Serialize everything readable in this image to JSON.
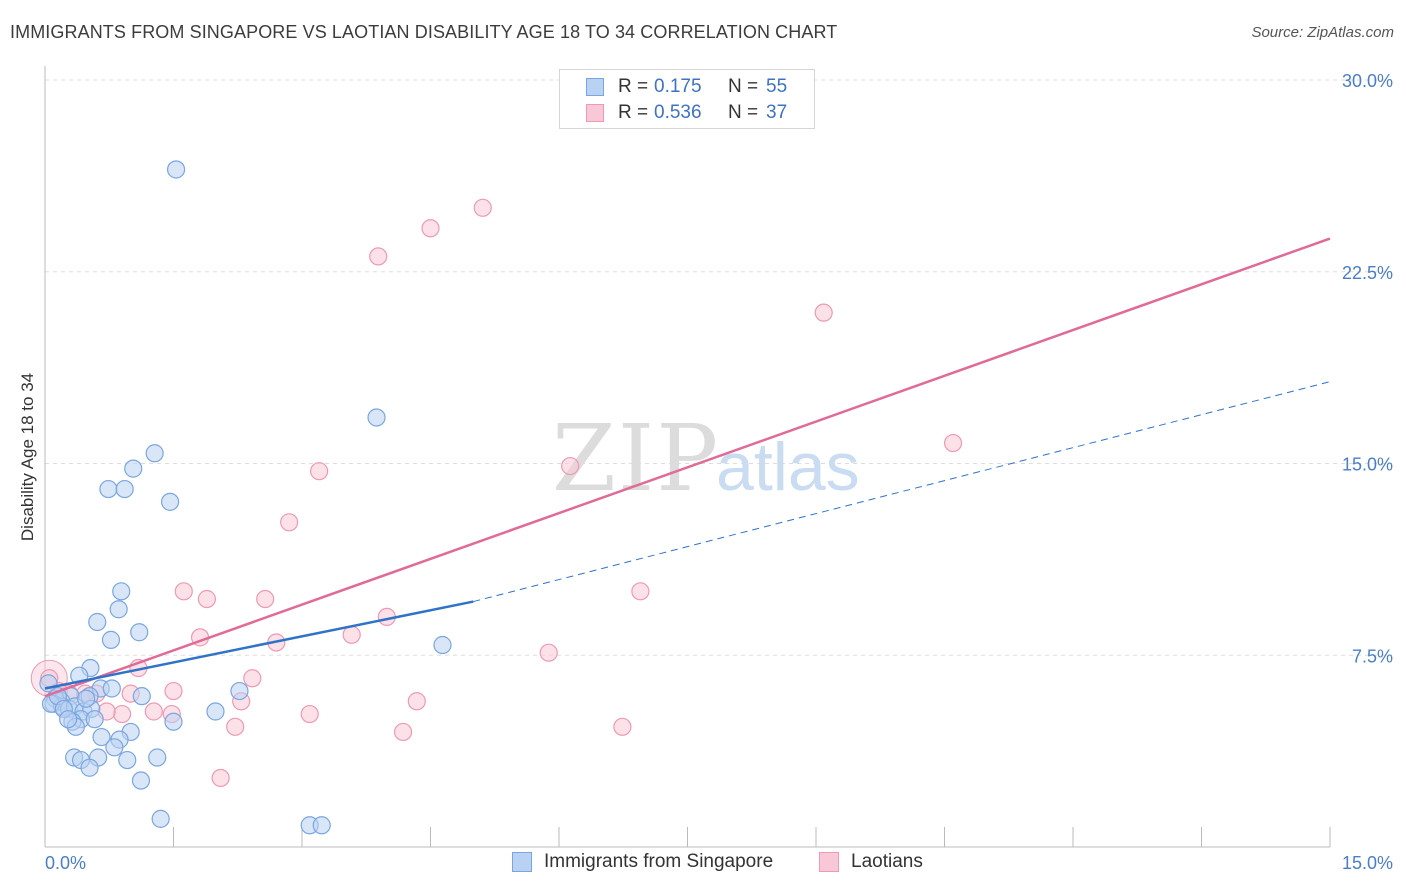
{
  "title": "IMMIGRANTS FROM SINGAPORE VS LAOTIAN DISABILITY AGE 18 TO 34 CORRELATION CHART",
  "source": "Source: ZipAtlas.com",
  "watermark": {
    "zip": "ZIP",
    "atlas": "atlas"
  },
  "legend_top": [
    {
      "r_label": "R =",
      "r_value": "0.175",
      "n_label": "N =",
      "n_value": "55"
    },
    {
      "r_label": "R =",
      "r_value": "0.536",
      "n_label": "N =",
      "n_value": "37"
    }
  ],
  "legend_bottom": [
    {
      "label": "Immigrants from Singapore"
    },
    {
      "label": "Laotians"
    }
  ],
  "colors": {
    "blue_fill": "#b9d1f2",
    "blue_stroke": "#7aa6e0",
    "blue_line": "#2f73c9",
    "pink_fill": "#f9c8d7",
    "pink_stroke": "#ee9ab4",
    "pink_line": "#e06b96",
    "tick_text": "#4a7ec7"
  },
  "chart_data": {
    "type": "scatter",
    "title": "IMMIGRANTS FROM SINGAPORE VS LAOTIAN DISABILITY AGE 18 TO 34 CORRELATION CHART",
    "xlabel": "",
    "ylabel": "Disability Age 18 to 34",
    "xlim": [
      0,
      15
    ],
    "ylim": [
      0,
      30
    ],
    "x_tick_labels": [
      "0.0%",
      "15.0%"
    ],
    "y_ticks": [
      7.5,
      15.0,
      22.5,
      30.0
    ],
    "y_tick_labels": [
      "7.5%",
      "15.0%",
      "22.5%",
      "30.0%"
    ],
    "grid": true,
    "series": [
      {
        "name": "Immigrants from Singapore",
        "r": 0.175,
        "n": 55,
        "trend_solid": [
          [
            0,
            6.2
          ],
          [
            5.0,
            9.6
          ]
        ],
        "trend_dashed": [
          [
            5.0,
            9.6
          ],
          [
            15.0,
            18.2
          ]
        ],
        "points": [
          [
            1.53,
            26.5
          ],
          [
            3.87,
            16.8
          ],
          [
            1.28,
            15.4
          ],
          [
            1.03,
            14.8
          ],
          [
            0.74,
            14.0
          ],
          [
            0.93,
            14.0
          ],
          [
            1.46,
            13.5
          ],
          [
            0.89,
            10.0
          ],
          [
            0.86,
            9.3
          ],
          [
            0.61,
            8.8
          ],
          [
            1.1,
            8.4
          ],
          [
            0.77,
            8.1
          ],
          [
            4.64,
            7.9
          ],
          [
            0.53,
            7.0
          ],
          [
            0.4,
            6.7
          ],
          [
            0.65,
            6.2
          ],
          [
            0.78,
            6.2
          ],
          [
            2.27,
            6.1
          ],
          [
            1.13,
            5.9
          ],
          [
            0.3,
            5.9
          ],
          [
            0.52,
            5.9
          ],
          [
            0.19,
            5.7
          ],
          [
            0.12,
            5.8
          ],
          [
            0.1,
            5.6
          ],
          [
            0.2,
            5.5
          ],
          [
            0.28,
            5.4
          ],
          [
            0.35,
            5.5
          ],
          [
            0.45,
            5.3
          ],
          [
            0.54,
            5.4
          ],
          [
            0.42,
            5.0
          ],
          [
            0.58,
            5.0
          ],
          [
            0.32,
            4.9
          ],
          [
            0.36,
            4.7
          ],
          [
            1.99,
            5.3
          ],
          [
            1.5,
            4.9
          ],
          [
            0.66,
            4.3
          ],
          [
            1.0,
            4.5
          ],
          [
            0.87,
            4.2
          ],
          [
            0.81,
            3.9
          ],
          [
            0.34,
            3.5
          ],
          [
            0.42,
            3.4
          ],
          [
            0.62,
            3.5
          ],
          [
            1.31,
            3.5
          ],
          [
            0.96,
            3.4
          ],
          [
            0.52,
            3.1
          ],
          [
            1.12,
            2.6
          ],
          [
            1.35,
            1.1
          ],
          [
            3.09,
            0.85
          ],
          [
            3.23,
            0.85
          ],
          [
            0.04,
            6.4
          ],
          [
            0.07,
            5.6
          ],
          [
            0.15,
            5.9
          ],
          [
            0.22,
            5.4
          ],
          [
            0.48,
            5.8
          ],
          [
            0.27,
            5.0
          ]
        ]
      },
      {
        "name": "Laotians",
        "r": 0.536,
        "n": 37,
        "trend_solid": [
          [
            0,
            5.9
          ],
          [
            15.0,
            23.8
          ]
        ],
        "points": [
          [
            5.11,
            25.0
          ],
          [
            4.5,
            24.2
          ],
          [
            3.89,
            23.1
          ],
          [
            9.09,
            20.9
          ],
          [
            10.6,
            15.8
          ],
          [
            6.13,
            14.9
          ],
          [
            3.2,
            14.7
          ],
          [
            2.85,
            12.7
          ],
          [
            1.62,
            10.0
          ],
          [
            6.95,
            10.0
          ],
          [
            1.89,
            9.7
          ],
          [
            2.57,
            9.7
          ],
          [
            3.99,
            9.0
          ],
          [
            3.58,
            8.3
          ],
          [
            1.81,
            8.2
          ],
          [
            2.7,
            8.0
          ],
          [
            5.88,
            7.6
          ],
          [
            1.09,
            7.0
          ],
          [
            2.42,
            6.6
          ],
          [
            1.5,
            6.1
          ],
          [
            1.0,
            6.0
          ],
          [
            0.6,
            6.0
          ],
          [
            0.28,
            6.0
          ],
          [
            0.47,
            6.0
          ],
          [
            0.16,
            6.1
          ],
          [
            2.29,
            5.7
          ],
          [
            4.34,
            5.7
          ],
          [
            1.27,
            5.3
          ],
          [
            1.48,
            5.2
          ],
          [
            0.9,
            5.2
          ],
          [
            3.09,
            5.2
          ],
          [
            0.72,
            5.3
          ],
          [
            2.22,
            4.7
          ],
          [
            6.74,
            4.7
          ],
          [
            4.18,
            4.5
          ],
          [
            2.05,
            2.7
          ],
          [
            0.05,
            6.6
          ]
        ]
      }
    ]
  }
}
